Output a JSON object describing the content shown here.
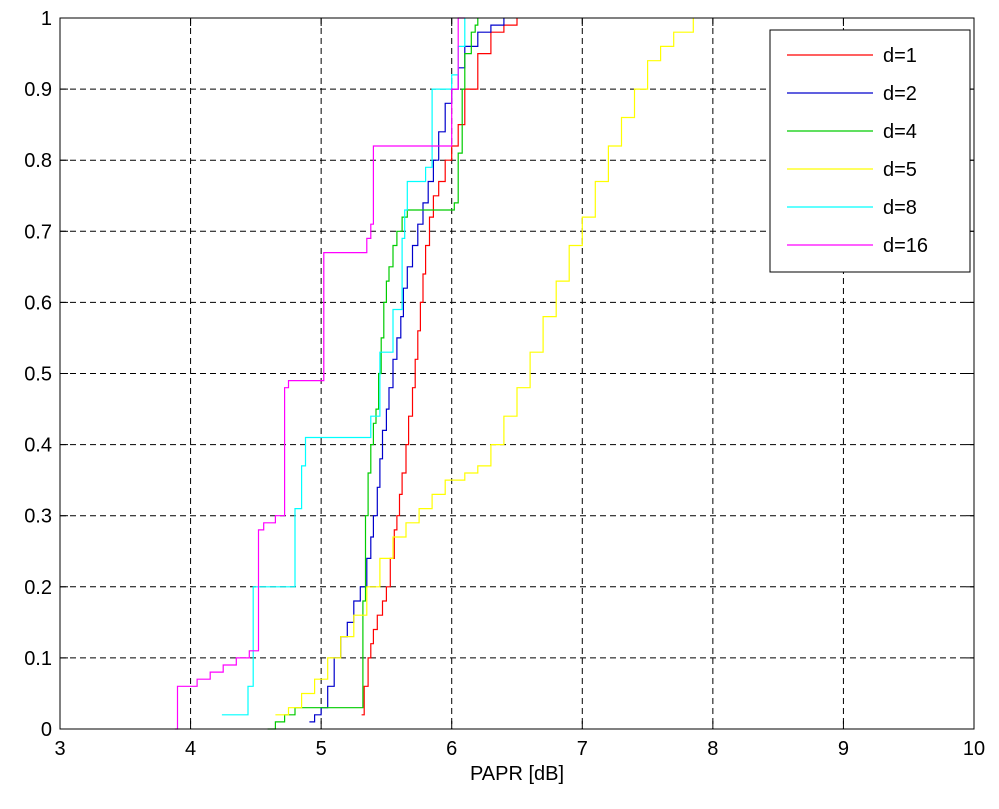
{
  "chart_data": {
    "type": "line",
    "title": "",
    "xlabel": "PAPR [dB]",
    "ylabel": "",
    "xlim": [
      3,
      10
    ],
    "ylim": [
      0,
      1
    ],
    "x_ticks": [
      "3",
      "4",
      "5",
      "6",
      "7",
      "8",
      "9",
      "10"
    ],
    "y_ticks": [
      "0",
      "0.1",
      "0.2",
      "0.3",
      "0.4",
      "0.5",
      "0.6",
      "0.7",
      "0.8",
      "0.9",
      "1"
    ],
    "grid": true,
    "legend_position": "top-right",
    "series": [
      {
        "name": "d=1",
        "color": "#ff0000",
        "x": [
          5.31,
          5.33,
          5.36,
          5.38,
          5.4,
          5.43,
          5.47,
          5.5,
          5.53,
          5.56,
          5.58,
          5.6,
          5.62,
          5.65,
          5.67,
          5.7,
          5.72,
          5.74,
          5.76,
          5.78,
          5.8,
          5.83,
          5.86,
          5.9,
          5.95,
          6.0,
          6.05,
          6.1,
          6.2,
          6.3,
          6.4,
          6.5
        ],
        "y": [
          0.02,
          0.06,
          0.1,
          0.12,
          0.14,
          0.16,
          0.18,
          0.2,
          0.24,
          0.28,
          0.3,
          0.33,
          0.36,
          0.4,
          0.44,
          0.48,
          0.52,
          0.56,
          0.6,
          0.64,
          0.68,
          0.72,
          0.75,
          0.77,
          0.8,
          0.82,
          0.85,
          0.9,
          0.95,
          0.98,
          0.99,
          1.0
        ]
      },
      {
        "name": "d=2",
        "color": "#0000cc",
        "x": [
          4.91,
          4.95,
          5.0,
          5.05,
          5.1,
          5.15,
          5.2,
          5.25,
          5.3,
          5.35,
          5.38,
          5.4,
          5.43,
          5.45,
          5.47,
          5.5,
          5.52,
          5.55,
          5.58,
          5.61,
          5.63,
          5.66,
          5.7,
          5.74,
          5.78,
          5.82,
          5.86,
          5.9,
          5.95,
          6.0,
          6.05,
          6.1,
          6.2,
          6.3,
          6.4
        ],
        "y": [
          0.01,
          0.02,
          0.03,
          0.06,
          0.1,
          0.13,
          0.15,
          0.18,
          0.2,
          0.24,
          0.27,
          0.3,
          0.34,
          0.38,
          0.42,
          0.45,
          0.48,
          0.52,
          0.55,
          0.58,
          0.62,
          0.65,
          0.68,
          0.71,
          0.74,
          0.77,
          0.8,
          0.84,
          0.88,
          0.9,
          0.93,
          0.96,
          0.98,
          0.99,
          1.0
        ]
      },
      {
        "name": "d=4",
        "color": "#00cc00",
        "x": [
          4.59,
          4.65,
          4.72,
          4.8,
          4.9,
          5.0,
          5.1,
          5.2,
          5.3,
          5.32,
          5.34,
          5.36,
          5.38,
          5.4,
          5.42,
          5.44,
          5.46,
          5.48,
          5.5,
          5.52,
          5.55,
          5.58,
          5.62,
          5.66,
          5.7,
          5.8,
          5.92,
          6.02,
          6.05,
          6.08,
          6.1,
          6.15,
          6.18,
          6.2
        ],
        "y": [
          0.0,
          0.01,
          0.02,
          0.03,
          0.03,
          0.03,
          0.03,
          0.03,
          0.03,
          0.18,
          0.3,
          0.36,
          0.4,
          0.43,
          0.45,
          0.5,
          0.55,
          0.6,
          0.63,
          0.65,
          0.68,
          0.7,
          0.72,
          0.73,
          0.73,
          0.73,
          0.73,
          0.74,
          0.81,
          0.9,
          0.95,
          0.98,
          0.99,
          1.0
        ]
      },
      {
        "name": "d=5",
        "color": "#ffff00",
        "x": [
          4.65,
          4.75,
          4.85,
          4.95,
          5.05,
          5.15,
          5.25,
          5.35,
          5.45,
          5.55,
          5.65,
          5.75,
          5.85,
          5.95,
          6.1,
          6.2,
          6.3,
          6.4,
          6.5,
          6.6,
          6.7,
          6.8,
          6.9,
          7.0,
          7.1,
          7.2,
          7.3,
          7.4,
          7.5,
          7.6,
          7.7,
          7.85
        ],
        "y": [
          0.02,
          0.03,
          0.05,
          0.07,
          0.1,
          0.13,
          0.16,
          0.2,
          0.24,
          0.27,
          0.29,
          0.31,
          0.33,
          0.35,
          0.36,
          0.37,
          0.4,
          0.44,
          0.48,
          0.53,
          0.58,
          0.63,
          0.68,
          0.72,
          0.77,
          0.82,
          0.86,
          0.9,
          0.94,
          0.96,
          0.98,
          1.0
        ]
      },
      {
        "name": "d=8",
        "color": "#00ffff",
        "x": [
          4.24,
          4.44,
          4.48,
          4.8,
          4.85,
          4.88,
          5.38,
          5.45,
          5.55,
          5.62,
          5.64,
          5.66,
          5.8,
          5.85,
          5.95,
          6.0,
          6.05,
          6.1
        ],
        "y": [
          0.02,
          0.06,
          0.2,
          0.31,
          0.37,
          0.41,
          0.44,
          0.53,
          0.59,
          0.69,
          0.73,
          0.77,
          0.79,
          0.9,
          0.9,
          0.92,
          0.96,
          1.0
        ]
      },
      {
        "name": "d=16",
        "color": "#ff00ff",
        "x": [
          3.88,
          3.9,
          4.05,
          4.15,
          4.25,
          4.35,
          4.45,
          4.52,
          4.56,
          4.65,
          4.72,
          4.75,
          4.8,
          5.0,
          5.02,
          5.25,
          5.35,
          5.38,
          5.4,
          5.95,
          6.0,
          6.05,
          6.1
        ],
        "y": [
          0.0,
          0.06,
          0.07,
          0.08,
          0.09,
          0.1,
          0.11,
          0.28,
          0.29,
          0.3,
          0.48,
          0.49,
          0.49,
          0.49,
          0.67,
          0.67,
          0.69,
          0.71,
          0.82,
          0.82,
          0.9,
          1.0,
          1.0
        ]
      }
    ]
  }
}
